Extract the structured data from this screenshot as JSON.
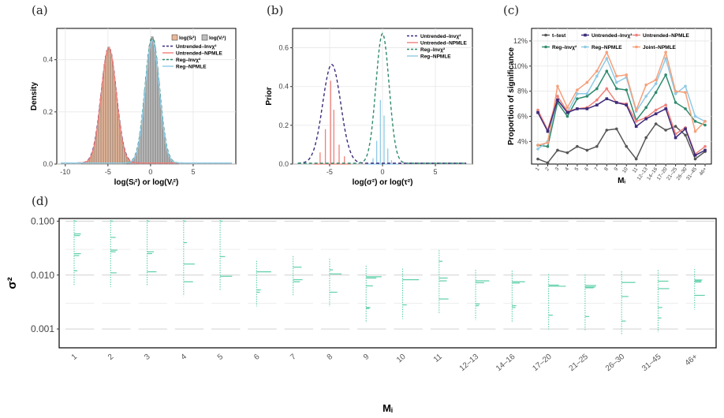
{
  "panel_labels": [
    "(a)",
    "(b)",
    "(c)",
    "(d)"
  ],
  "colors": {
    "pink": "#f0807a",
    "blue_dark": "#3d2a7a",
    "teal": "#2e8b6e",
    "light_blue": "#8ecae6",
    "orange": "#f6a07a",
    "gray": "#555555",
    "mint": "#5fd0a8"
  },
  "chart_data": [
    {
      "panel": "(a)",
      "type": "area",
      "xlabel": "log(Sᵢ²) or log(Vᵢ²)",
      "ylabel": "Density",
      "xlim": [
        -11,
        10
      ],
      "ylim": [
        0,
        0.52
      ],
      "xticks": [
        "-10",
        "-5",
        "0",
        "5"
      ],
      "yticks": [
        "0.0",
        "0.2",
        "0.4"
      ],
      "legend": [
        "log(Sᵢ²)",
        "log(Vᵢ²)",
        "Untrended–Invχ²",
        "Untrended–NPMLE",
        "Reg–Invχ²",
        "Reg–NPMLE"
      ],
      "series": [
        {
          "name": "log(Sᵢ²)",
          "kind": "histogram",
          "mean": -4.9,
          "sd": 0.9,
          "peak": 0.45
        },
        {
          "name": "log(Vᵢ²)",
          "kind": "histogram",
          "mean": 0.2,
          "sd": 0.85,
          "peak": 0.49
        },
        {
          "name": "Untrended–Invχ²",
          "kind": "dashed",
          "mean": -4.9,
          "sd": 0.9,
          "peak": 0.44
        },
        {
          "name": "Untrended–NPMLE",
          "kind": "solid",
          "mean": -4.9,
          "sd": 0.88,
          "peak": 0.44
        },
        {
          "name": "Reg–Invχ²",
          "kind": "dashed",
          "mean": 0.2,
          "sd": 0.85,
          "peak": 0.48
        },
        {
          "name": "Reg–NPMLE",
          "kind": "solid",
          "mean": 0.2,
          "sd": 0.83,
          "peak": 0.47
        }
      ]
    },
    {
      "panel": "(b)",
      "type": "line",
      "xlabel": "log(σ²) or log(τ²)",
      "ylabel": "Prior",
      "xlim": [
        -8.5,
        8.5
      ],
      "ylim": [
        0,
        0.7
      ],
      "xticks": [
        "-5",
        "0",
        "5"
      ],
      "yticks": [
        "0.0",
        "0.2",
        "0.4",
        "0.6"
      ],
      "legend": [
        "Untrended–Invχ²",
        "Untrended–NPMLE",
        "Reg–Invχ²",
        "Reg–NPMLE"
      ],
      "curves": [
        {
          "name": "Untrended–Invχ²",
          "mean": -4.8,
          "sd": 0.85,
          "peak": 0.51
        },
        {
          "name": "Reg–Invχ²",
          "mean": 0.0,
          "sd": 0.62,
          "peak": 0.67
        }
      ],
      "spikes": [
        {
          "name": "Untrended–NPMLE",
          "x": [
            -5.9,
            -5.4,
            -4.9,
            -4.6,
            -4.1,
            -3.6
          ],
          "y": [
            0.06,
            0.18,
            0.43,
            0.28,
            0.1,
            0.04
          ]
        },
        {
          "name": "Reg–NPMLE",
          "x": [
            -0.9,
            -0.55,
            -0.2,
            0.15,
            0.5,
            0.85
          ],
          "y": [
            0.03,
            0.12,
            0.33,
            0.25,
            0.08,
            0.02
          ]
        }
      ]
    },
    {
      "panel": "(c)",
      "type": "line",
      "xlabel": "Mᵢ",
      "ylabel": "Proportion of significance",
      "ylim": [
        2.2,
        13
      ],
      "yticks": [
        "4%",
        "6%",
        "8%",
        "10%",
        "12%"
      ],
      "categories": [
        "1",
        "2",
        "3",
        "4",
        "5",
        "6",
        "7",
        "8",
        "9",
        "10",
        "11",
        "12–13",
        "14–16",
        "17–20",
        "21–25",
        "26–30",
        "31–45",
        "46+"
      ],
      "legend": [
        "t–test",
        "Untrended–Invχ²",
        "Untrended–NPMLE",
        "Reg–Invχ²",
        "Reg–NPMLE",
        "Joint–NPMLE"
      ],
      "series": [
        {
          "name": "t–test",
          "values": [
            2.6,
            2.3,
            3.3,
            3.1,
            3.6,
            3.3,
            3.6,
            4.9,
            5.0,
            3.6,
            2.6,
            4.3,
            5.4,
            4.9,
            5.2,
            4.5,
            2.6,
            3.2
          ]
        },
        {
          "name": "Untrended–Invχ²",
          "values": [
            6.3,
            4.8,
            7.3,
            6.3,
            6.6,
            6.6,
            6.9,
            7.4,
            7.1,
            6.9,
            5.2,
            5.8,
            6.2,
            6.6,
            4.3,
            5.0,
            2.9,
            3.3
          ]
        },
        {
          "name": "Untrended–NPMLE",
          "values": [
            6.5,
            4.9,
            7.6,
            6.4,
            6.6,
            6.7,
            7.3,
            8.2,
            7.1,
            7.0,
            5.6,
            5.9,
            6.5,
            6.9,
            4.6,
            5.1,
            3.0,
            3.6
          ]
        },
        {
          "name": "Reg–Invχ²",
          "values": [
            3.7,
            3.6,
            7.1,
            6.0,
            7.4,
            7.6,
            8.2,
            9.6,
            8.2,
            8.1,
            5.7,
            6.7,
            7.9,
            9.3,
            7.1,
            6.6,
            5.6,
            5.3
          ]
        },
        {
          "name": "Reg–NPMLE",
          "values": [
            3.4,
            4.0,
            7.6,
            6.3,
            7.8,
            7.8,
            9.2,
            10.6,
            8.7,
            9.1,
            6.4,
            7.6,
            8.6,
            10.6,
            7.8,
            8.4,
            6.0,
            5.6
          ]
        },
        {
          "name": "Joint–NPMLE",
          "values": [
            3.7,
            3.9,
            8.4,
            6.7,
            8.1,
            8.7,
            9.6,
            11.1,
            9.2,
            9.3,
            6.5,
            8.5,
            8.9,
            11.1,
            8.0,
            7.9,
            4.8,
            5.6
          ]
        }
      ]
    },
    {
      "panel": "(d)",
      "type": "bar",
      "xlabel": "Mᵢ",
      "ylabel": "σ²",
      "ylim_log10": [
        -3.35,
        -0.95
      ],
      "yticks": [
        "0.100",
        "0.010",
        "0.001"
      ],
      "ytick_values": [
        0.1,
        0.01,
        0.001
      ],
      "categories": [
        "1",
        "2",
        "3",
        "4",
        "5",
        "6",
        "7",
        "8",
        "9",
        "10",
        "11",
        "12–13",
        "14–16",
        "17–20",
        "21–25",
        "26–30",
        "31–45",
        "46+"
      ],
      "group_spikes": [
        {
          "sigma2": [
            0.058,
            0.054,
            0.025,
            0.023,
            0.012,
            0.1
          ],
          "weight": [
            0.3,
            0.25,
            0.3,
            0.2,
            0.1,
            0.05
          ]
        },
        {
          "sigma2": [
            0.05,
            0.029,
            0.027,
            0.011,
            0.1
          ],
          "weight": [
            0.2,
            0.3,
            0.2,
            0.25,
            0.05
          ]
        },
        {
          "sigma2": [
            0.027,
            0.025,
            0.0115,
            0.1
          ],
          "weight": [
            0.3,
            0.2,
            0.45,
            0.05
          ]
        },
        {
          "sigma2": [
            0.04,
            0.016,
            0.0075,
            0.1
          ],
          "weight": [
            0.1,
            0.55,
            0.45,
            0.05
          ]
        },
        {
          "sigma2": [
            0.022,
            0.0095,
            0.1
          ],
          "weight": [
            0.2,
            0.6,
            0.05
          ]
        },
        {
          "sigma2": [
            0.0115,
            0.0053,
            0.0048
          ],
          "weight": [
            0.75,
            0.15,
            0.1
          ]
        },
        {
          "sigma2": [
            0.014,
            0.0082,
            0.0075
          ],
          "weight": [
            0.4,
            0.45,
            0.3
          ]
        },
        {
          "sigma2": [
            0.0125,
            0.0105,
            0.0048
          ],
          "weight": [
            0.1,
            0.6,
            0.35
          ]
        },
        {
          "sigma2": [
            0.0093,
            0.0088,
            0.0063,
            0.0025,
            0.0024
          ],
          "weight": [
            0.8,
            0.5,
            0.3,
            0.15,
            0.1
          ]
        },
        {
          "sigma2": [
            0.0082,
            0.0028
          ],
          "weight": [
            0.85,
            0.15
          ]
        },
        {
          "sigma2": [
            0.018,
            0.0088,
            0.0078,
            0.0036
          ],
          "weight": [
            0.1,
            0.4,
            0.35,
            0.45
          ]
        },
        {
          "sigma2": [
            0.0078,
            0.0072,
            0.0029,
            0.0027
          ],
          "weight": [
            0.7,
            0.4,
            0.15,
            0.1
          ]
        },
        {
          "sigma2": [
            0.0075,
            0.0071,
            0.0027,
            0.0025
          ],
          "weight": [
            0.65,
            0.35,
            0.15,
            0.1
          ]
        },
        {
          "sigma2": [
            0.0065,
            0.0062,
            0.0018
          ],
          "weight": [
            0.5,
            0.9,
            0.15
          ]
        },
        {
          "sigma2": [
            0.0064,
            0.006,
            0.0058,
            0.0017
          ],
          "weight": [
            0.55,
            0.5,
            0.4,
            0.15
          ]
        },
        {
          "sigma2": [
            0.0073,
            0.004,
            0.0014
          ],
          "weight": [
            0.7,
            0.3,
            0.15
          ]
        },
        {
          "sigma2": [
            0.0077,
            0.0056,
            0.0025,
            0.0016
          ],
          "weight": [
            0.5,
            0.55,
            0.15,
            0.1
          ]
        },
        {
          "sigma2": [
            0.0081,
            0.0078,
            0.0074,
            0.0042
          ],
          "weight": [
            0.35,
            0.3,
            0.3,
            0.5
          ]
        }
      ]
    }
  ]
}
